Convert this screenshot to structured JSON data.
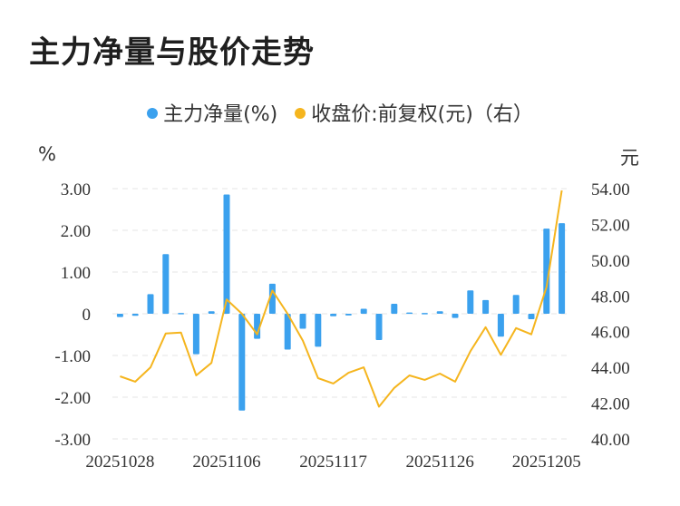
{
  "title": "主力净量与股价走势",
  "legend": [
    {
      "label": "主力净量(%)",
      "color": "#3ba1ee"
    },
    {
      "label": "收盘价:前复权(元)（右）",
      "color": "#f5b51e"
    }
  ],
  "units": {
    "left": "%",
    "right": "元"
  },
  "chart_data": {
    "type": "bar+line",
    "title": "主力净量与股价走势",
    "x": [
      "20251028",
      "20251029",
      "20251030",
      "20251031",
      "20251103",
      "20251104",
      "20251105",
      "20251106",
      "20251107",
      "20251110",
      "20251111",
      "20251112",
      "20251113",
      "20251114",
      "20251117",
      "20251118",
      "20251119",
      "20251120",
      "20251121",
      "20251124",
      "20251125",
      "20251126",
      "20251127",
      "20251128",
      "20251201",
      "20251202",
      "20251203",
      "20251204",
      "20251205",
      "20251208"
    ],
    "x_tick_labels": [
      "20251028",
      "20251106",
      "20251117",
      "20251126",
      "20251205"
    ],
    "series": [
      {
        "name": "主力净量(%)",
        "type": "bar",
        "axis": "left",
        "color": "#3ba1ee",
        "values": [
          -0.08,
          -0.05,
          0.47,
          1.43,
          0.02,
          -0.97,
          0.06,
          2.86,
          -2.32,
          -0.6,
          0.72,
          -0.86,
          -0.36,
          -0.79,
          -0.06,
          -0.04,
          0.12,
          -0.63,
          0.24,
          0.03,
          0.02,
          0.06,
          -0.1,
          0.56,
          0.33,
          -0.55,
          0.45,
          -0.13,
          2.04,
          2.17
        ]
      },
      {
        "name": "收盘价:前复权(元)（右）",
        "type": "line",
        "axis": "right",
        "color": "#f5b51e",
        "values": [
          43.5,
          43.2,
          44.0,
          45.9,
          45.95,
          43.55,
          44.25,
          47.8,
          47.0,
          45.85,
          48.3,
          47.0,
          45.5,
          43.4,
          43.1,
          43.7,
          44.0,
          41.8,
          42.85,
          43.55,
          43.3,
          43.65,
          43.2,
          44.9,
          46.25,
          44.7,
          46.2,
          45.85,
          48.5,
          53.9
        ]
      }
    ],
    "y_left": {
      "range": [
        -3,
        3
      ],
      "ticks": [
        "3.00",
        "2.00",
        "1.00",
        "0",
        "-1.00",
        "-2.00",
        "-3.00"
      ]
    },
    "y_right": {
      "range": [
        40,
        54
      ],
      "ticks": [
        "54.00",
        "52.00",
        "50.00",
        "48.00",
        "46.00",
        "44.00",
        "42.00",
        "40.00"
      ]
    },
    "grid": "horizontal dashed",
    "legend_position": "top-center"
  }
}
